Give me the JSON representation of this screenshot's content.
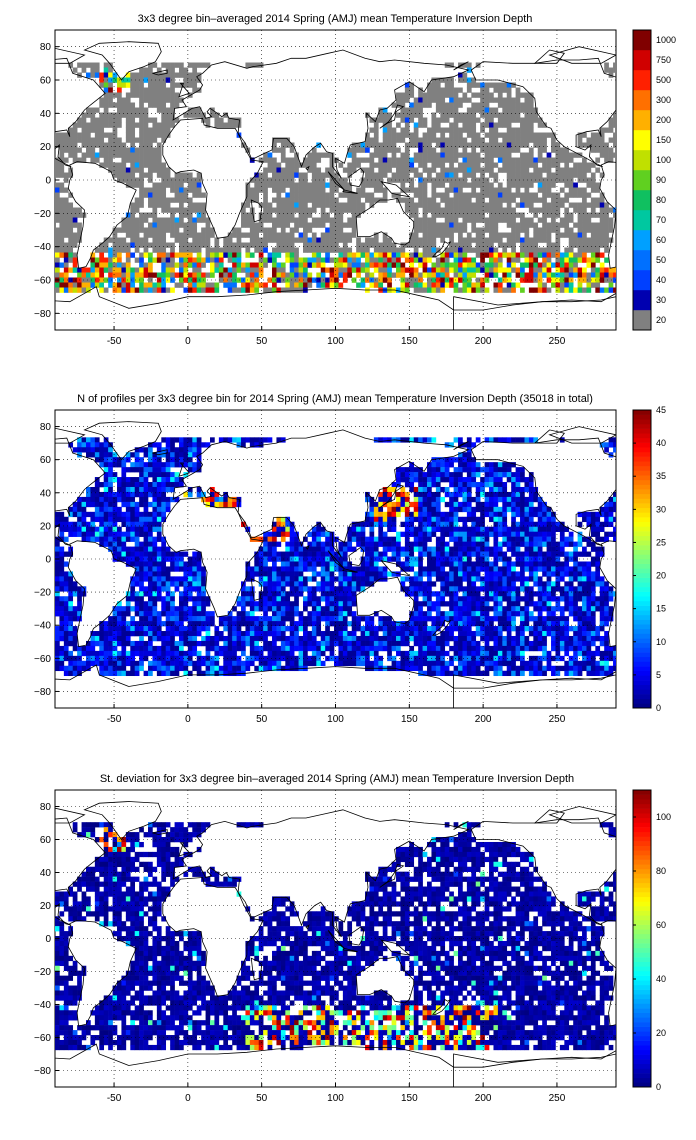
{
  "chart_data": [
    {
      "type": "heatmap",
      "title": "3x3 degree bin–averaged 2014 Spring (AMJ) mean Temperature Inversion Depth",
      "xticks": [
        "-50",
        "0",
        "50",
        "100",
        "150",
        "200",
        "250"
      ],
      "yticks": [
        "80",
        "60",
        "40",
        "20",
        "0",
        "−20",
        "−40",
        "−60",
        "−80"
      ],
      "xlim": [
        -90,
        290
      ],
      "ylim": [
        -90,
        90
      ],
      "bin_size_deg": 3,
      "colorbar": {
        "scale": "categorical",
        "labels": [
          "20",
          "30",
          "40",
          "50",
          "60",
          "70",
          "80",
          "90",
          "100",
          "150",
          "200",
          "300",
          "500",
          "750",
          "1000"
        ],
        "colors": [
          "#808080",
          "#0000b0",
          "#0040ff",
          "#0070ff",
          "#00a0ff",
          "#00c8a0",
          "#10c060",
          "#60d020",
          "#c0e000",
          "#ffff00",
          "#ffb000",
          "#ff7000",
          "#ff2000",
          "#d00000",
          "#800000"
        ]
      },
      "value_summary": {
        "dominant_class": "20",
        "high_values_region": "Southern Ocean band 45°S–65°S and North Atlantic ~55°N–65°N, 40°W–60°W",
        "high_class_range": [
          "300",
          "1000"
        ]
      }
    },
    {
      "type": "heatmap",
      "title": "N of profiles per 3x3 degree bin for 2014 Spring (AMJ) mean Temperature Inversion Depth  (35018 in total)",
      "xticks": [
        "-50",
        "0",
        "50",
        "100",
        "150",
        "200",
        "250"
      ],
      "yticks": [
        "80",
        "60",
        "40",
        "20",
        "0",
        "−20",
        "−40",
        "−60",
        "−80"
      ],
      "xlim": [
        -90,
        290
      ],
      "ylim": [
        -90,
        90
      ],
      "bin_size_deg": 3,
      "total_profiles": 35018,
      "colorbar": {
        "scale": "linear",
        "min": 0,
        "max": 45,
        "ticks": [
          "0",
          "5",
          "10",
          "15",
          "20",
          "25",
          "30",
          "35",
          "40",
          "45"
        ]
      },
      "value_summary": {
        "typical_count_range": [
          1,
          10
        ],
        "hotspots": [
          "Mediterranean ~35°N–45°N",
          "Red Sea/Arabian Sea ~15°N–25°N",
          "Kuroshio ~25°N–40°N, 130°E–150°E"
        ],
        "hotspot_count_range": [
          30,
          45
        ]
      }
    },
    {
      "type": "heatmap",
      "title": "St. deviation for 3x3 degree bin–averaged 2014 Spring (AMJ) mean Temperature Inversion Depth",
      "xticks": [
        "-50",
        "0",
        "50",
        "100",
        "150",
        "200",
        "250"
      ],
      "yticks": [
        "80",
        "60",
        "40",
        "20",
        "0",
        "−20",
        "−40",
        "−60",
        "−80"
      ],
      "xlim": [
        -90,
        290
      ],
      "ylim": [
        -90,
        90
      ],
      "bin_size_deg": 3,
      "colorbar": {
        "scale": "linear",
        "min": 0,
        "max": 110,
        "ticks": [
          "0",
          "20",
          "40",
          "60",
          "80",
          "100"
        ]
      },
      "value_summary": {
        "dominant_value_range": [
          0,
          10
        ],
        "high_values_region": "Southern Ocean 45°S–65°S, 60°E–200°E and North Atlantic 55°N–65°N",
        "high_value_range": [
          60,
          110
        ]
      }
    }
  ]
}
